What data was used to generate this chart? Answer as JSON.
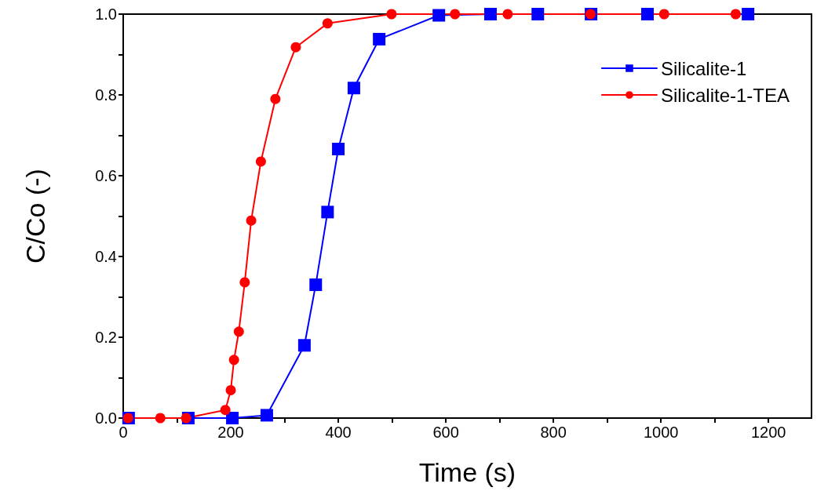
{
  "chart_data": {
    "type": "line",
    "xlabel": "Time (s)",
    "ylabel": "C/Co (-)",
    "xlim": [
      0,
      1280
    ],
    "ylim": [
      0,
      1.0
    ],
    "xticks": [
      0,
      {
        "value": 100,
        "label": null
      },
      200,
      {
        "value": 300,
        "label": null
      },
      400,
      {
        "value": 500,
        "label": null
      },
      600,
      {
        "value": 700,
        "label": null
      },
      800,
      {
        "value": 900,
        "label": null
      },
      1000,
      {
        "value": 1100,
        "label": null
      },
      1200
    ],
    "yticks": [
      {
        "value": 0,
        "label": "0.0"
      },
      {
        "value": 0.1,
        "label": null
      },
      {
        "value": 0.2,
        "label": "0.2"
      },
      {
        "value": 0.3,
        "label": null
      },
      {
        "value": 0.4,
        "label": "0.4"
      },
      {
        "value": 0.5,
        "label": null
      },
      {
        "value": 0.6,
        "label": "0.6"
      },
      {
        "value": 0.7,
        "label": null
      },
      {
        "value": 0.8,
        "label": "0.8"
      },
      {
        "value": 0.9,
        "label": null
      },
      {
        "value": 1.0,
        "label": "1.0"
      }
    ],
    "grid": false,
    "legend": "top right",
    "line_style": "solid",
    "series": [
      {
        "name": "Silicalite-1",
        "color": "#0000ff",
        "marker": "square",
        "x": [
          10,
          121,
          203,
          267,
          337,
          358,
          380,
          400,
          429,
          476,
          587,
          683,
          771,
          870,
          975,
          1162
        ],
        "values": [
          0,
          0,
          0,
          0.007,
          0.18,
          0.33,
          0.51,
          0.666,
          0.817,
          0.938,
          0.997,
          1.0,
          1.0,
          1.0,
          1.0,
          1.0
        ]
      },
      {
        "name": "Silicalite-1-TEA",
        "color": "#ff0000",
        "marker": "circle",
        "x": [
          9,
          69,
          117,
          190,
          200,
          206,
          215,
          226,
          238,
          256,
          283,
          321,
          380,
          499,
          617,
          715,
          869,
          1006,
          1139
        ],
        "values": [
          0,
          0,
          0,
          0.02,
          0.069,
          0.144,
          0.214,
          0.336,
          0.489,
          0.635,
          0.79,
          0.918,
          0.977,
          1.0,
          1.0,
          1.0,
          1.0,
          1.0,
          1.0
        ]
      }
    ]
  }
}
